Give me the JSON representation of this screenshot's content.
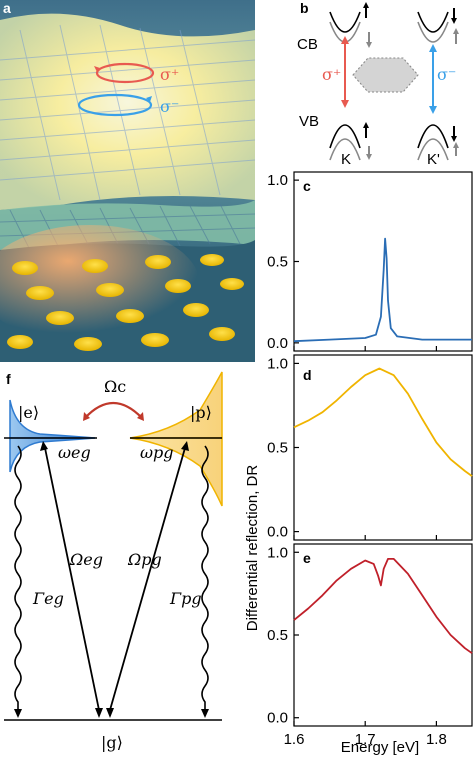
{
  "figure": {
    "panel_letters": {
      "a": "a",
      "b": "b",
      "c": "c",
      "d": "d",
      "e": "e",
      "f": "f"
    },
    "panel_a": {
      "sigma_plus": "σ⁺",
      "sigma_minus": "σ⁻",
      "colors": {
        "sigma_plus": "#e85a50",
        "sigma_minus": "#3aa0e8",
        "glow": "#fff6b0",
        "disk": "#f2c400",
        "substrate": "#9fc7b8"
      }
    },
    "panel_b": {
      "cb_label": "CB",
      "vb_label": "VB",
      "k_label": "K",
      "kprime_label": "K'",
      "sigma_plus": "σ⁺",
      "sigma_minus": "σ⁻",
      "colors": {
        "sigma_plus": "#e85a50",
        "sigma_minus": "#3aa0e8"
      }
    },
    "panel_f": {
      "state_e": "|e⟩",
      "state_p": "|p⟩",
      "state_g": "|g⟩",
      "omega_c": "Ωc",
      "omega_eg_freq": "ωeg",
      "omega_pg_freq": "ωpg",
      "Omega_eg": "Ωeg",
      "Omega_pg": "Ωpg",
      "Gamma_eg": "Γeg",
      "Gamma_pg": "Γpg",
      "colors": {
        "e_fill": "#2f7bd0",
        "p_fill": "#f6d98a",
        "p_edge": "#f0b400",
        "coupling": "#c0392b"
      }
    },
    "y_axis_label": "Differential reflection, DR",
    "x_axis_label": "Energy [eV]"
  },
  "chart_data": [
    {
      "type": "line",
      "panel": "c",
      "color": "#2a6db5",
      "xlim": [
        1.6,
        1.85
      ],
      "ylim": [
        -0.05,
        1.05
      ],
      "yticks": [
        0.0,
        0.5,
        1.0
      ],
      "ytick_labels": [
        "0.0",
        "0.5",
        "1.0"
      ],
      "series": [
        {
          "x": [
            1.6,
            1.65,
            1.7,
            1.715,
            1.722,
            1.726,
            1.728,
            1.73,
            1.732,
            1.736,
            1.745,
            1.78,
            1.85
          ],
          "y": [
            0.01,
            0.02,
            0.03,
            0.05,
            0.16,
            0.45,
            0.64,
            0.52,
            0.26,
            0.09,
            0.04,
            0.02,
            0.02
          ]
        }
      ]
    },
    {
      "type": "line",
      "panel": "d",
      "color": "#f0b400",
      "xlim": [
        1.6,
        1.85
      ],
      "ylim": [
        -0.05,
        1.05
      ],
      "yticks": [
        0.0,
        0.5,
        1.0
      ],
      "ytick_labels": [
        "0.0",
        "0.5",
        "1.0"
      ],
      "series": [
        {
          "x": [
            1.6,
            1.62,
            1.64,
            1.66,
            1.68,
            1.7,
            1.72,
            1.74,
            1.76,
            1.78,
            1.8,
            1.82,
            1.84,
            1.85
          ],
          "y": [
            0.62,
            0.66,
            0.71,
            0.78,
            0.86,
            0.93,
            0.97,
            0.93,
            0.82,
            0.67,
            0.53,
            0.43,
            0.36,
            0.33
          ]
        }
      ]
    },
    {
      "type": "line",
      "panel": "e",
      "color": "#c0202a",
      "xlim": [
        1.6,
        1.85
      ],
      "ylim": [
        -0.05,
        1.05
      ],
      "yticks": [
        0.0,
        0.5,
        1.0
      ],
      "ytick_labels": [
        "0.0",
        "0.5",
        "1.0"
      ],
      "xticks": [
        1.6,
        1.7,
        1.8
      ],
      "xtick_labels": [
        "1.6",
        "1.7",
        "1.8"
      ],
      "series": [
        {
          "x": [
            1.6,
            1.62,
            1.64,
            1.66,
            1.68,
            1.7,
            1.712,
            1.718,
            1.722,
            1.726,
            1.732,
            1.74,
            1.76,
            1.78,
            1.8,
            1.82,
            1.84,
            1.85
          ],
          "y": [
            0.59,
            0.66,
            0.74,
            0.83,
            0.9,
            0.95,
            0.93,
            0.86,
            0.8,
            0.9,
            0.96,
            0.96,
            0.87,
            0.74,
            0.61,
            0.5,
            0.42,
            0.39
          ]
        }
      ]
    }
  ]
}
